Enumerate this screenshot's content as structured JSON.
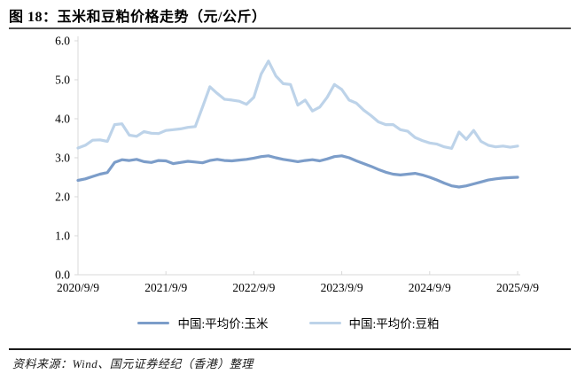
{
  "header": {
    "title": "图 18：玉米和豆粕价格走势（元/公斤）"
  },
  "chart_data": {
    "type": "line",
    "title": "玉米和豆粕价格走势（元/公斤）",
    "unit": "元/公斤",
    "grid": false,
    "legend_position": "bottom",
    "axis_color": "#D9D9D9",
    "ylim": [
      0.0,
      6.0
    ],
    "y_ticks": [
      "0.0",
      "1.0",
      "2.0",
      "3.0",
      "4.0",
      "5.0",
      "6.0"
    ],
    "x_tick_labels": [
      "2020/9/9",
      "2021/9/9",
      "2022/9/9",
      "2023/9/9",
      "2024/9/9",
      "2025/9/9"
    ],
    "x": [
      "2020/9",
      "2020/10",
      "2020/11",
      "2020/12",
      "2021/1",
      "2021/2",
      "2021/3",
      "2021/4",
      "2021/5",
      "2021/6",
      "2021/7",
      "2021/8",
      "2021/9",
      "2021/10",
      "2021/11",
      "2021/12",
      "2022/1",
      "2022/2",
      "2022/3",
      "2022/4",
      "2022/5",
      "2022/6",
      "2022/7",
      "2022/8",
      "2022/9",
      "2022/10",
      "2022/11",
      "2022/12",
      "2023/1",
      "2023/2",
      "2023/3",
      "2023/4",
      "2023/5",
      "2023/6",
      "2023/7",
      "2023/8",
      "2023/9",
      "2023/10",
      "2023/11",
      "2023/12",
      "2024/1",
      "2024/2",
      "2024/3",
      "2024/4",
      "2024/5",
      "2024/6",
      "2024/7",
      "2024/8",
      "2024/9",
      "2024/10",
      "2024/11",
      "2024/12",
      "2025/1",
      "2025/2",
      "2025/3",
      "2025/4",
      "2025/5",
      "2025/6",
      "2025/7",
      "2025/8",
      "2025/9"
    ],
    "series": [
      {
        "name": "中国:平均价:玉米",
        "color": "#7C9DC9",
        "values": [
          2.42,
          2.46,
          2.52,
          2.58,
          2.62,
          2.88,
          2.95,
          2.93,
          2.96,
          2.9,
          2.88,
          2.93,
          2.92,
          2.85,
          2.88,
          2.91,
          2.89,
          2.87,
          2.93,
          2.96,
          2.93,
          2.92,
          2.94,
          2.96,
          2.99,
          3.03,
          3.05,
          3.0,
          2.96,
          2.93,
          2.9,
          2.93,
          2.95,
          2.92,
          2.97,
          3.03,
          3.05,
          3.0,
          2.92,
          2.85,
          2.78,
          2.7,
          2.63,
          2.58,
          2.56,
          2.58,
          2.6,
          2.56,
          2.5,
          2.43,
          2.35,
          2.28,
          2.25,
          2.28,
          2.33,
          2.38,
          2.43,
          2.46,
          2.48,
          2.49,
          2.5
        ]
      },
      {
        "name": "中国:平均价:豆粕",
        "color": "#BDD3E9",
        "values": [
          3.25,
          3.32,
          3.45,
          3.46,
          3.42,
          3.85,
          3.87,
          3.58,
          3.55,
          3.67,
          3.63,
          3.62,
          3.7,
          3.72,
          3.74,
          3.78,
          3.8,
          4.3,
          4.82,
          4.65,
          4.5,
          4.48,
          4.45,
          4.37,
          4.55,
          5.15,
          5.48,
          5.1,
          4.9,
          4.88,
          4.35,
          4.48,
          4.2,
          4.3,
          4.55,
          4.88,
          4.75,
          4.48,
          4.4,
          4.22,
          4.08,
          3.92,
          3.85,
          3.85,
          3.72,
          3.68,
          3.52,
          3.44,
          3.38,
          3.35,
          3.28,
          3.24,
          3.66,
          3.47,
          3.7,
          3.42,
          3.32,
          3.28,
          3.3,
          3.27,
          3.3
        ]
      }
    ]
  },
  "legend": {
    "items": [
      {
        "label": "中国:平均价:玉米"
      },
      {
        "label": "中国:平均价:豆粕"
      }
    ]
  },
  "footer": {
    "source": "资料来源：Wind、国元证券经纪（香港）整理"
  }
}
